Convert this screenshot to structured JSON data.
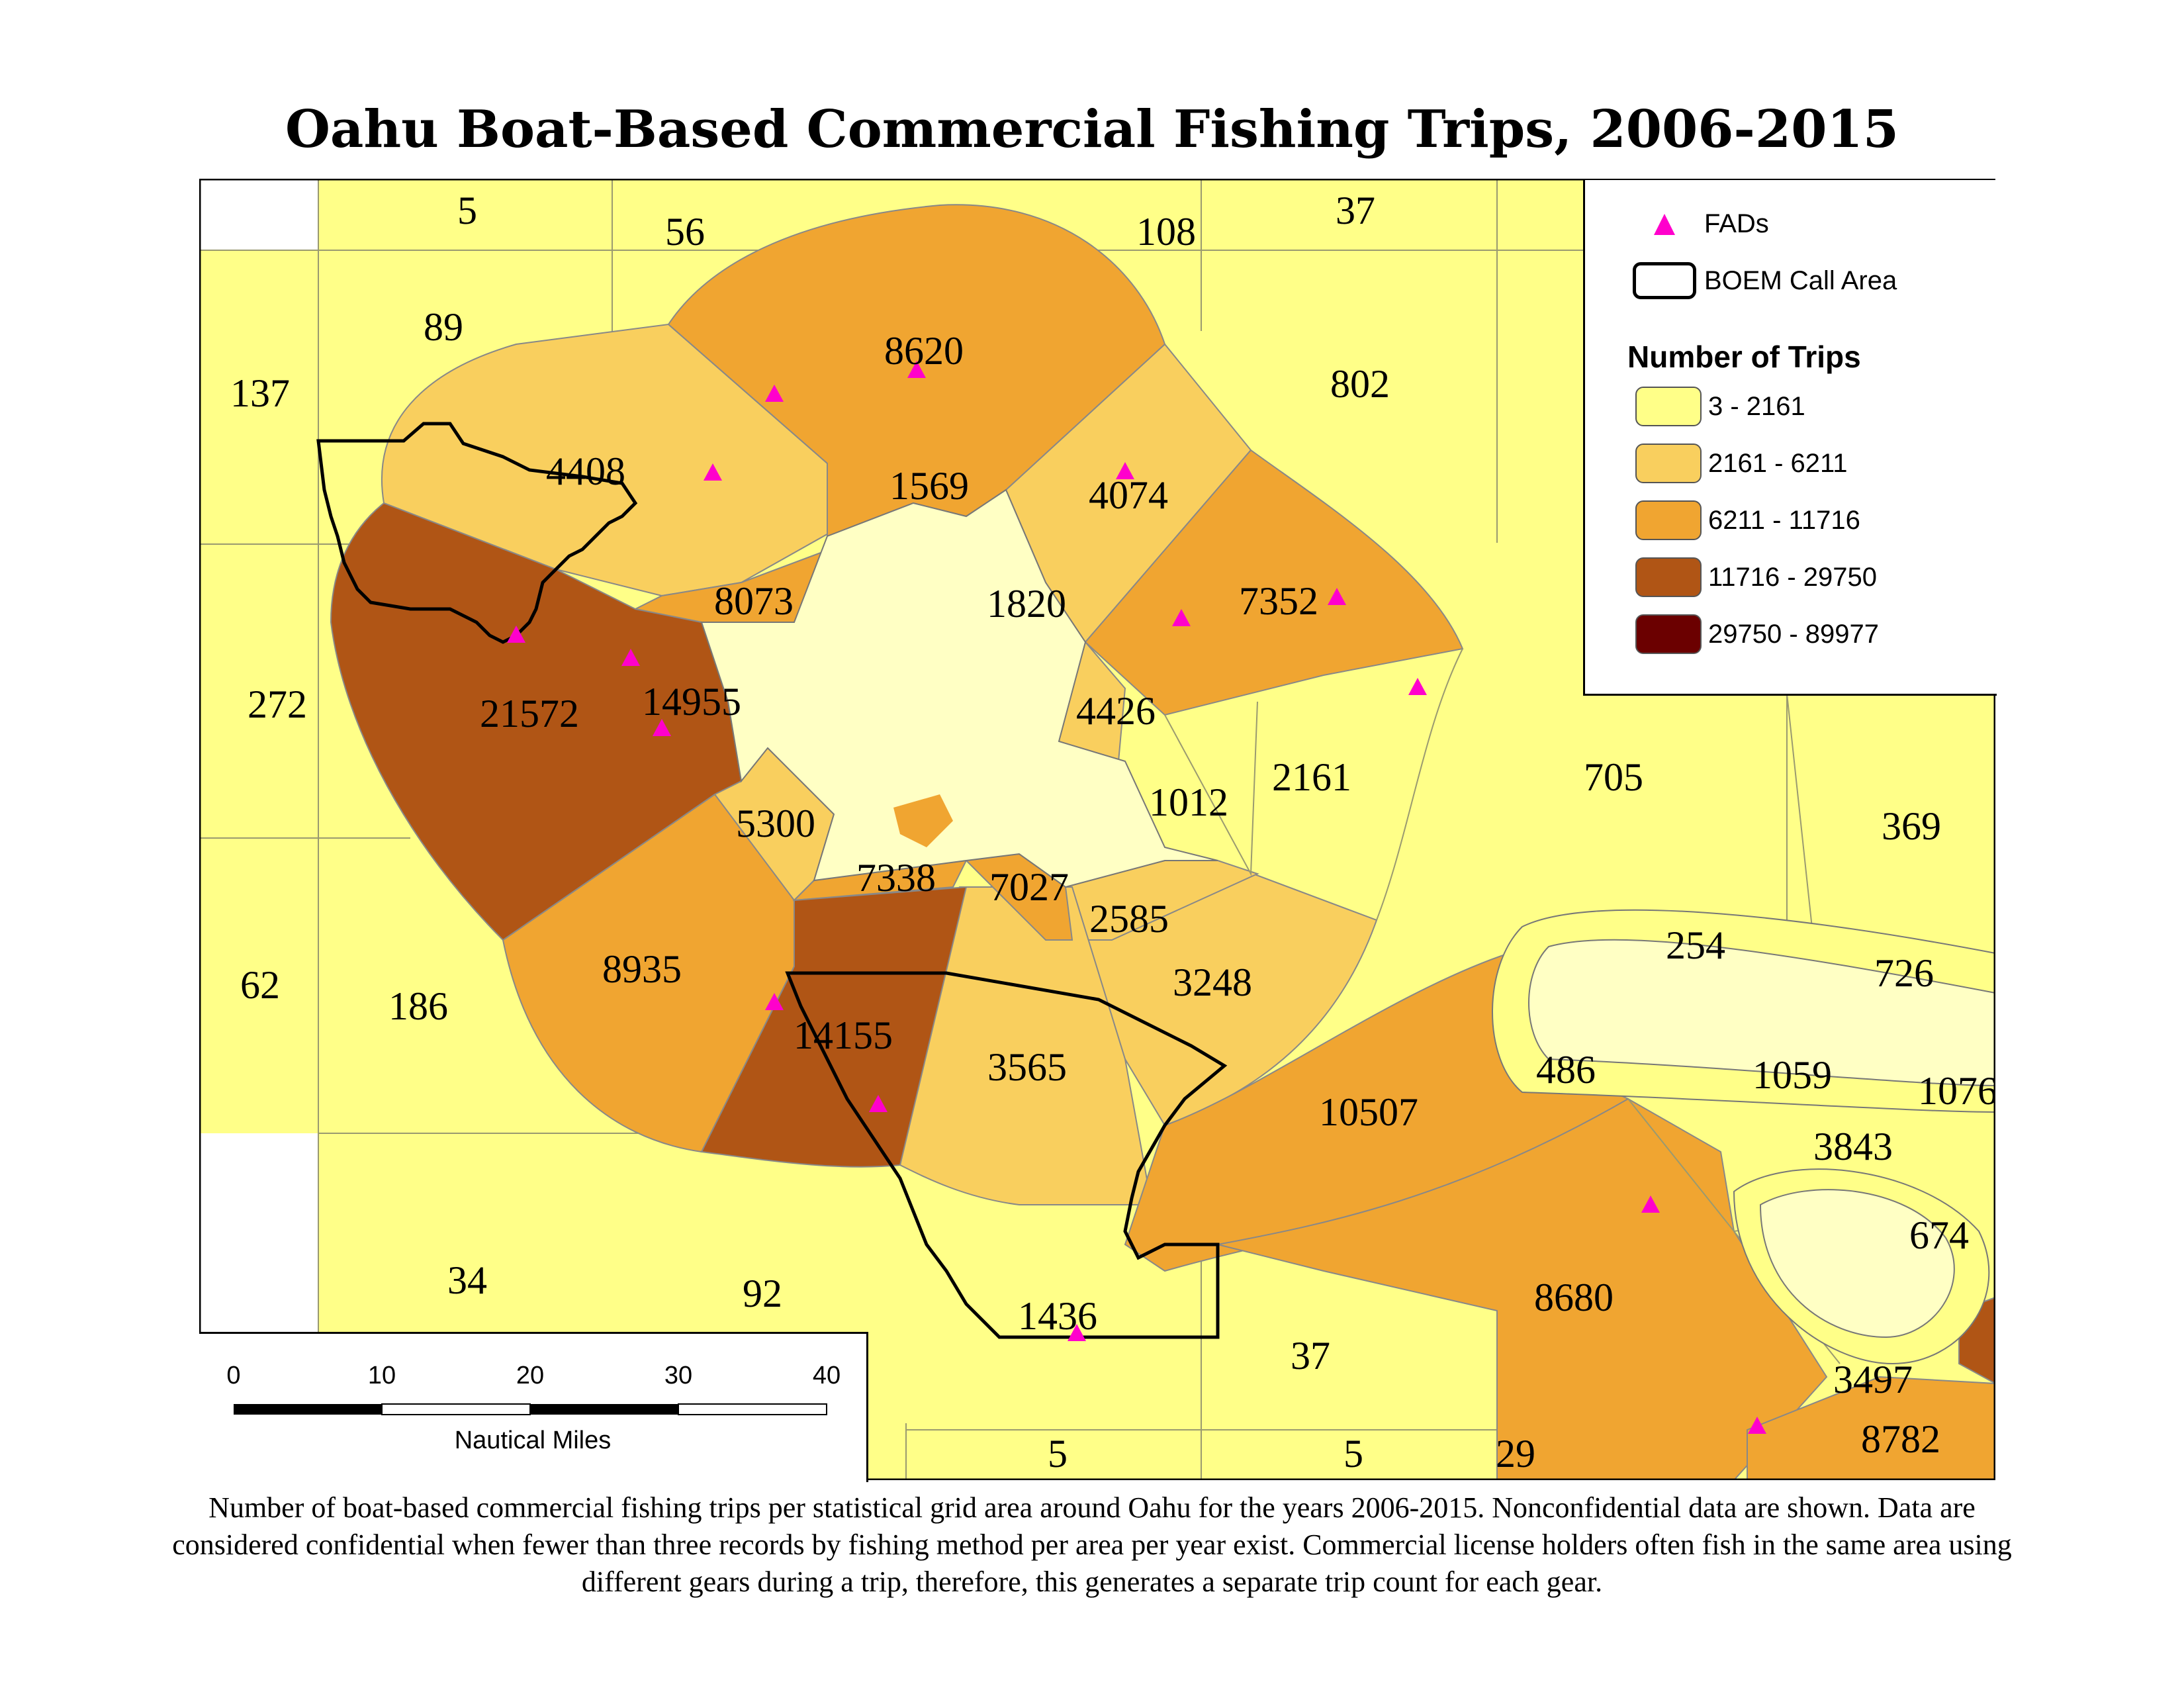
{
  "title": "Oahu Boat-Based Commercial Fishing Trips, 2006-2015",
  "legend": {
    "fads_label": "FADs",
    "boem_label": "BOEM Call Area",
    "heading": "Number of Trips",
    "classes": [
      {
        "range": "3 - 2161",
        "color": "#FFFF88"
      },
      {
        "range": "2161 - 6211",
        "color": "#F9CF5E"
      },
      {
        "range": "6211 - 11716",
        "color": "#F0A531"
      },
      {
        "range": "11716 - 29750",
        "color": "#B05515"
      },
      {
        "range": "29750 - 89977",
        "color": "#6B0000"
      }
    ]
  },
  "colors": {
    "c1": "#FFFF88",
    "c2": "#F9CF5E",
    "c3": "#F0A531",
    "c4": "#B05515",
    "c5": "#6B0000",
    "land": "#FFFFC4",
    "fad": "#FF00CC",
    "outline": "#000000"
  },
  "areas": {
    "a5_top": "5",
    "a56": "56",
    "a108": "108",
    "a37_top": "37",
    "a89": "89",
    "a137": "137",
    "a8620": "8620",
    "a802": "802",
    "a4408": "4408",
    "a1569": "1569",
    "a4074": "4074",
    "a8073": "8073",
    "a1820": "1820",
    "a7352": "7352",
    "a272": "272",
    "a21572": "21572",
    "a14955": "14955",
    "a4426": "4426",
    "a2161": "2161",
    "a705": "705",
    "a1012": "1012",
    "a369": "369",
    "a5300": "5300",
    "a7338": "7338",
    "a7027": "7027",
    "a2585": "2585",
    "a254": "254",
    "a726": "726",
    "a8935": "8935",
    "a3248": "3248",
    "a62": "62",
    "a186": "186",
    "a14155": "14155",
    "a3565": "3565",
    "a486": "486",
    "a1059": "1059",
    "a1076": "1076",
    "a10507": "10507",
    "a3843": "3843",
    "a674": "674",
    "a34": "34",
    "a92": "92",
    "a8680": "8680",
    "a1436": "1436",
    "a37_bot": "37",
    "a3497": "3497",
    "a8782": "8782",
    "a5_bot1": "5",
    "a5_bot2": "5",
    "a29": "29"
  },
  "scale": {
    "ticks": [
      "0",
      "10",
      "20",
      "30",
      "40"
    ],
    "unit": "Nautical Miles"
  },
  "caption": "Number of boat-based commercial fishing trips per statistical grid area around Oahu for the years 2006-2015. Nonconfidential data are shown. Data are considered confidential when fewer than three records by fishing method per area per year exist. Commercial license holders often fish in the same area using different gears during a trip, therefore, this generates a separate trip count for each gear."
}
